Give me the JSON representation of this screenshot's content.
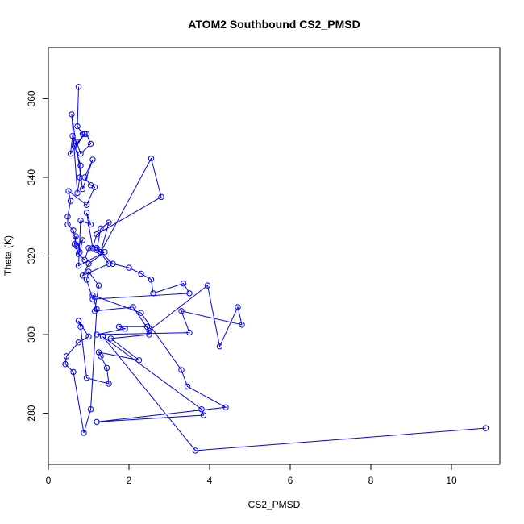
{
  "chart_data": {
    "type": "line",
    "title": "ATOM2 Southbound CS2_PMSD",
    "xlabel": "CS2_PMSD",
    "ylabel": "Theta (K)",
    "xlim": [
      0,
      11.2
    ],
    "ylim": [
      267,
      373
    ],
    "xticks": [
      0,
      2,
      4,
      6,
      8,
      10
    ],
    "yticks": [
      280,
      300,
      320,
      340,
      360
    ],
    "grid": false,
    "series_color": "#0000ff",
    "markers": "open-circle",
    "x": [
      0.75,
      0.72,
      0.85,
      0.95,
      1.05,
      0.8,
      0.7,
      0.6,
      0.55,
      0.9,
      0.65,
      0.8,
      0.78,
      0.72,
      0.58,
      0.85,
      1.1,
      0.9,
      1.05,
      1.15,
      0.95,
      0.5,
      0.55,
      0.48,
      0.48,
      0.62,
      0.7,
      0.85,
      0.78,
      0.68,
      0.65,
      0.75,
      0.9,
      1.0,
      1.2,
      1.3,
      1.5,
      1.3,
      2.55,
      2.8,
      1.2,
      1.1,
      0.95,
      1.05,
      0.8,
      0.75,
      1.4,
      1.0,
      0.85,
      1.5,
      1.2,
      1.6,
      2.0,
      2.3,
      2.55,
      2.6,
      3.35,
      3.5,
      1.1,
      0.95,
      1.0,
      1.25,
      1.15,
      2.1,
      2.5,
      3.95,
      4.25,
      4.7,
      4.8,
      3.3,
      3.5,
      1.2,
      1.9,
      1.75,
      2.45,
      2.5,
      1.55,
      2.25,
      1.25,
      1.3,
      1.45,
      1.5,
      0.95,
      0.8,
      0.75,
      1.0,
      0.75,
      0.45,
      0.42,
      0.62,
      0.88,
      1.05,
      1.2,
      1.1,
      2.3,
      3.3,
      3.45,
      4.4,
      1.2,
      3.85,
      3.8,
      1.35,
      3.65,
      10.85
    ],
    "y": [
      363,
      353,
      351,
      351,
      348.5,
      346,
      349,
      350.5,
      346,
      351,
      348,
      343,
      340,
      336,
      356,
      337,
      344.5,
      340,
      338,
      337.5,
      333,
      336.5,
      334,
      330,
      328,
      326.5,
      322.5,
      324,
      321,
      325,
      323,
      320.5,
      319,
      322,
      321.5,
      327,
      328.5,
      321,
      344.8,
      335,
      325.5,
      322,
      331,
      328,
      329,
      317.5,
      321,
      318,
      315,
      318,
      322,
      318,
      317,
      315.5,
      314,
      310.5,
      313,
      310.5,
      309,
      314,
      316,
      312.5,
      306,
      307,
      301,
      312.5,
      297,
      307,
      302.5,
      306,
      300.5,
      300,
      301.5,
      302,
      302,
      300,
      299,
      293.5,
      295.5,
      294.5,
      291.5,
      287.5,
      289,
      302,
      303.5,
      299.5,
      298,
      294.5,
      292.5,
      290.5,
      275,
      281,
      306.5,
      310,
      305.5,
      291,
      286.8,
      281.5,
      277.8,
      279.5,
      281,
      299.5,
      270.5,
      276.2
    ]
  }
}
